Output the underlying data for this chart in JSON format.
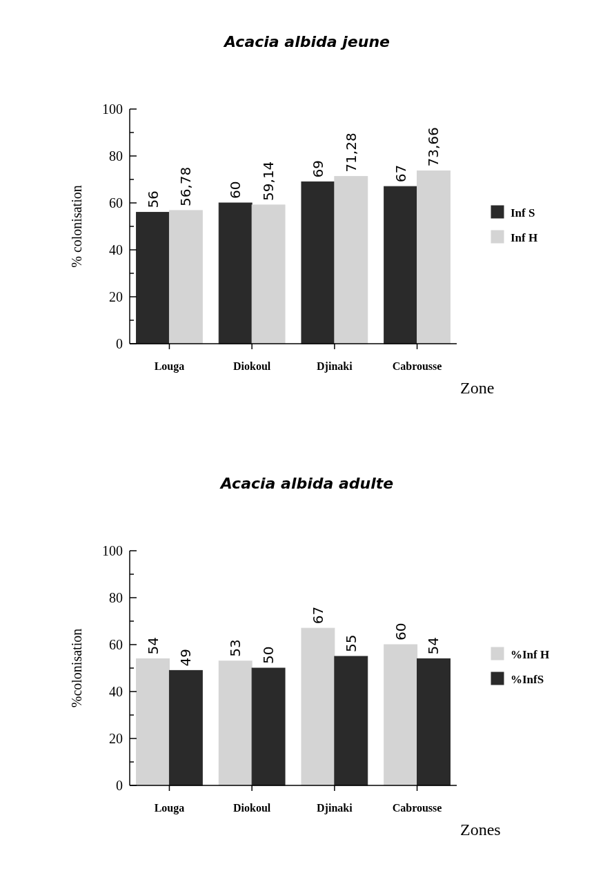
{
  "chart_data": [
    {
      "type": "bar",
      "title": "Acacia albida jeune",
      "xlabel": "Zone",
      "ylabel": "% colonisation",
      "categories": [
        "Louga",
        "Diokoul",
        "Djinaki",
        "Cabrousse"
      ],
      "series": [
        {
          "name": "Inf S",
          "color": "#2a2a2a",
          "values": [
            56,
            60,
            69,
            67
          ],
          "value_labels": [
            "56",
            "60",
            "69",
            "67"
          ]
        },
        {
          "name": "Inf H",
          "color": "#d4d4d4",
          "values": [
            56.78,
            59.14,
            71.28,
            73.66
          ],
          "value_labels": [
            "56,78",
            "59,14",
            "71,28",
            "73,66"
          ]
        }
      ],
      "ylim": [
        0,
        100
      ],
      "yticks": [
        0,
        {
          "value": 10,
          "label": null
        },
        20,
        {
          "value": 30,
          "label": null
        },
        40,
        {
          "value": 50,
          "label": null
        },
        60,
        {
          "value": 70,
          "label": null
        },
        80,
        {
          "value": 90,
          "label": null
        },
        100
      ],
      "grid": false,
      "legend": "right"
    },
    {
      "type": "bar",
      "title": "Acacia albida adulte",
      "xlabel": "Zones",
      "ylabel": "%colonisation",
      "categories": [
        "Louga",
        "Diokoul",
        "Djinaki",
        "Cabrousse"
      ],
      "series": [
        {
          "name": "%Inf H",
          "color": "#d4d4d4",
          "values": [
            54,
            53,
            67,
            60
          ]
        },
        {
          "name": "%InfS",
          "color": "#2a2a2a",
          "values": [
            49,
            50,
            55,
            54
          ]
        }
      ],
      "data_labels": true,
      "ylim": [
        0,
        100
      ],
      "yticks": [
        0,
        {
          "value": 10,
          "label": null
        },
        20,
        {
          "value": 30,
          "label": null
        },
        40,
        {
          "value": 50,
          "label": null
        },
        60,
        {
          "value": 70,
          "label": null
        },
        80,
        {
          "value": 90,
          "label": null
        },
        100
      ],
      "grid": false,
      "legend": "right"
    }
  ]
}
